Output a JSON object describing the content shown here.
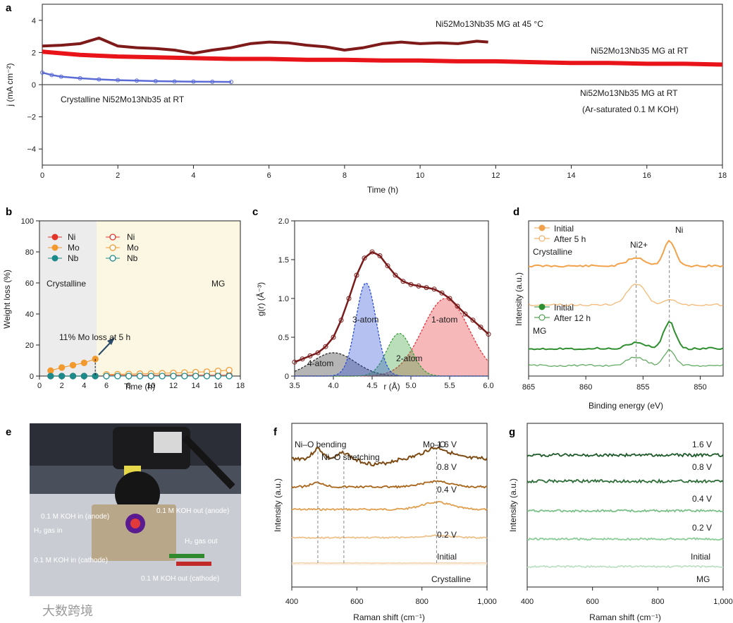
{
  "panel_labels": {
    "a": "a",
    "b": "b",
    "c": "c",
    "d": "d",
    "e": "e",
    "f": "f",
    "g": "g"
  },
  "watermark": "大数跨境",
  "colors": {
    "mg45": "#7f1a1a",
    "mgRT": "#e8141a",
    "cryst": "#5b6bd6",
    "ar": "#6e6e6e",
    "ni": "#e0352a",
    "mo": "#f39a2f",
    "nb": "#1c8a8a",
    "atom1": "#e8333a",
    "atom2": "#3aa03a",
    "atom3": "#2c4ed8",
    "atom4": "#2a2a2a",
    "fit": "#7a1b1b",
    "orange": "#f2a24a",
    "green": "#2f8f2f",
    "brown": "#7c4a12",
    "cryst_bg": "#ececec",
    "mg_bg": "#fbf7e2"
  },
  "photo": {
    "labels": {
      "koh_in_anode": "0.1 M KOH in (anode)",
      "h2_in": "H₂ gas in",
      "koh_in_cathode": "0.1 M KOH in (cathode)",
      "koh_out_anode": "0.1 M KOH out (anode)",
      "h2_out": "H₂ gas out",
      "koh_out_cathode": "0.1 M KOH out (cathode)"
    }
  },
  "chart_data": [
    {
      "panel": "a",
      "type": "line",
      "xlabel": "Time (h)",
      "ylabel": "j (mA cm⁻²)",
      "xlim": [
        0,
        18
      ],
      "ylim": [
        -5,
        5
      ],
      "xticks": [
        0,
        2,
        4,
        6,
        8,
        10,
        12,
        14,
        16,
        18
      ],
      "yticks": [
        -4,
        -2,
        0,
        2,
        4
      ],
      "series": [
        {
          "name": "Ni52Mo13Nb35 MG at 45 °C",
          "x": [
            0,
            0.5,
            1,
            1.5,
            2,
            2.5,
            3,
            3.5,
            4,
            4.5,
            5,
            5.5,
            6,
            6.5,
            7,
            7.5,
            8,
            8.5,
            9,
            9.5,
            10,
            10.5,
            11,
            11.5,
            11.8
          ],
          "y": [
            2.4,
            2.45,
            2.55,
            2.9,
            2.4,
            2.3,
            2.25,
            2.15,
            1.95,
            2.15,
            2.3,
            2.55,
            2.65,
            2.6,
            2.45,
            2.35,
            2.15,
            2.3,
            2.55,
            2.65,
            2.55,
            2.6,
            2.55,
            2.7,
            2.65
          ]
        },
        {
          "name": "Ni52Mo13Nb35 MG at RT",
          "x": [
            0,
            1,
            2,
            3,
            4,
            5,
            6,
            7,
            8,
            9,
            10,
            11,
            12,
            13,
            14,
            15,
            16,
            17,
            18
          ],
          "y": [
            2.05,
            1.85,
            1.75,
            1.7,
            1.65,
            1.6,
            1.6,
            1.55,
            1.55,
            1.5,
            1.5,
            1.45,
            1.45,
            1.4,
            1.35,
            1.35,
            1.3,
            1.3,
            1.25
          ]
        },
        {
          "name": "Crystalline Ni52Mo13Nb35 at RT",
          "x": [
            0,
            0.25,
            0.5,
            1,
            1.5,
            2,
            2.5,
            3,
            3.5,
            4,
            4.5,
            5
          ],
          "y": [
            0.75,
            0.6,
            0.5,
            0.4,
            0.33,
            0.28,
            0.25,
            0.22,
            0.2,
            0.19,
            0.18,
            0.17
          ]
        },
        {
          "name": "Ni52Mo13Nb35 MG at RT (Ar-saturated 0.1 M KOH)",
          "x": [
            0,
            18
          ],
          "y": [
            0,
            0
          ]
        }
      ],
      "annotations": {
        "mg45": "Ni52Mo13Nb35 MG at 45 °C",
        "mgrt": "Ni52Mo13Nb35 MG at RT",
        "cryst": "Crystalline Ni52Mo13Nb35 at RT",
        "ar1": "Ni52Mo13Nb35 MG at RT",
        "ar2": "(Ar-saturated 0.1 M KOH)"
      }
    },
    {
      "panel": "b",
      "type": "scatter",
      "xlabel": "Time (h)",
      "ylabel": "Weight loss (%)",
      "xlim": [
        0,
        18
      ],
      "ylim": [
        0,
        100
      ],
      "xticks": [
        0,
        2,
        4,
        6,
        8,
        10,
        12,
        14,
        16,
        18
      ],
      "yticks": [
        0,
        20,
        40,
        60,
        80,
        100
      ],
      "regions": {
        "crystalline": "Crystalline",
        "mg": "MG",
        "boundary": 5.2
      },
      "legend_filled": [
        "Ni",
        "Mo",
        "Nb"
      ],
      "legend_open": [
        "Ni",
        "Mo",
        "Nb"
      ],
      "series": [
        {
          "name": "Ni",
          "group": "crystalline",
          "x": [
            1,
            2,
            3,
            4,
            5
          ],
          "y": [
            0,
            0,
            0,
            0,
            0
          ]
        },
        {
          "name": "Mo",
          "group": "crystalline",
          "x": [
            1,
            2,
            3,
            4,
            5
          ],
          "y": [
            3.5,
            5.5,
            7,
            8.5,
            11
          ]
        },
        {
          "name": "Nb",
          "group": "crystalline",
          "x": [
            1,
            2,
            3,
            4,
            5
          ],
          "y": [
            0,
            0,
            0,
            0,
            0
          ]
        },
        {
          "name": "Ni",
          "group": "MG",
          "x": [
            6,
            7,
            8,
            9,
            10,
            11,
            12,
            13,
            14,
            15,
            16,
            17
          ],
          "y": [
            0.5,
            0.5,
            0.5,
            0.5,
            0.5,
            0.5,
            0.5,
            0.5,
            0.5,
            0.5,
            0.5,
            0.5
          ]
        },
        {
          "name": "Mo",
          "group": "MG",
          "x": [
            6,
            7,
            8,
            9,
            10,
            11,
            12,
            13,
            14,
            15,
            16,
            17
          ],
          "y": [
            1,
            1.2,
            1.3,
            1.5,
            1.6,
            1.8,
            2,
            2.2,
            2.5,
            2.8,
            3.3,
            3.8
          ]
        },
        {
          "name": "Nb",
          "group": "MG",
          "x": [
            6,
            7,
            8,
            9,
            10,
            11,
            12,
            13,
            14,
            15,
            16,
            17
          ],
          "y": [
            0,
            0,
            0,
            0,
            0,
            0,
            0,
            0,
            0,
            0,
            0,
            0
          ]
        }
      ],
      "annotation": "11% Mo loss at 5 h"
    },
    {
      "panel": "c",
      "type": "line",
      "xlabel": "r (Å)",
      "ylabel": "g(r) (Å⁻³)",
      "xlim": [
        3.5,
        6.0
      ],
      "ylim": [
        0,
        2.0
      ],
      "xticks": [
        3.5,
        4.0,
        4.5,
        5.0,
        5.5,
        6.0
      ],
      "yticks": [
        0,
        0.5,
        1.0,
        1.5,
        2.0
      ],
      "series": [
        {
          "name": "data",
          "x": [
            3.5,
            3.6,
            3.7,
            3.8,
            3.9,
            4.0,
            4.1,
            4.2,
            4.3,
            4.4,
            4.5,
            4.6,
            4.7,
            4.8,
            4.9,
            5.0,
            5.1,
            5.2,
            5.3,
            5.4,
            5.5,
            5.6,
            5.7,
            5.8,
            5.9,
            6.0
          ],
          "y": [
            0.18,
            0.22,
            0.26,
            0.3,
            0.38,
            0.5,
            0.72,
            1.0,
            1.3,
            1.52,
            1.6,
            1.55,
            1.42,
            1.3,
            1.22,
            1.18,
            1.16,
            1.14,
            1.12,
            1.07,
            1.0,
            0.9,
            0.8,
            0.72,
            0.63,
            0.54
          ]
        },
        {
          "name": "1-atom",
          "peak": 5.45,
          "height": 1.0,
          "width": 0.3
        },
        {
          "name": "2-atom",
          "peak": 4.85,
          "height": 0.55,
          "width": 0.16
        },
        {
          "name": "3-atom",
          "peak": 4.42,
          "height": 1.2,
          "width": 0.13
        },
        {
          "name": "4-atom",
          "peak": 4.0,
          "height": 0.3,
          "width": 0.28
        }
      ]
    },
    {
      "panel": "d",
      "type": "line",
      "xlabel": "Binding energy (eV)",
      "ylabel": "Intensity (a.u.)",
      "xlim": [
        865,
        848
      ],
      "xticks": [
        865,
        860,
        855,
        850
      ],
      "peaks": {
        "ni2plus": "Ni2+",
        "ni": "Ni",
        "ni2plus_energy": 855.6,
        "ni_energy": 852.7
      },
      "legends": {
        "cryst_title": "Crystalline",
        "cryst_initial": "Initial",
        "cryst_after": "After 5 h",
        "mg_title": "MG",
        "mg_initial": "Initial",
        "mg_after": "After 12 h"
      }
    },
    {
      "panel": "f",
      "type": "line",
      "xlabel": "Raman shift (cm⁻¹)",
      "ylabel": "Intensity (a.u.)",
      "xlim": [
        400,
        1000
      ],
      "xticks": [
        400,
        600,
        800,
        1000
      ],
      "xticklabels": [
        "400",
        "600",
        "800",
        "1,000"
      ],
      "curves": [
        "1.6 V",
        "0.8 V",
        "0.4 V",
        "0.2 V",
        "Initial",
        "Crystalline"
      ],
      "markers": {
        "ni_o_bending": "Ni–O bending",
        "ni_o_stretching": "Ni–O stretching",
        "mo_o": "Mo–O",
        "bending_shift": 480,
        "stretching_shift": 560,
        "mo_o_shift": 845
      }
    },
    {
      "panel": "g",
      "type": "line",
      "xlabel": "Raman shift (cm⁻¹)",
      "ylabel": "Intensity (a.u.)",
      "xlim": [
        400,
        1000
      ],
      "xticks": [
        400,
        600,
        800,
        1000
      ],
      "xticklabels": [
        "400",
        "600",
        "800",
        "1,000"
      ],
      "curves": [
        "1.6 V",
        "0.8 V",
        "0.4 V",
        "0.2 V",
        "Initial",
        "MG"
      ]
    }
  ]
}
